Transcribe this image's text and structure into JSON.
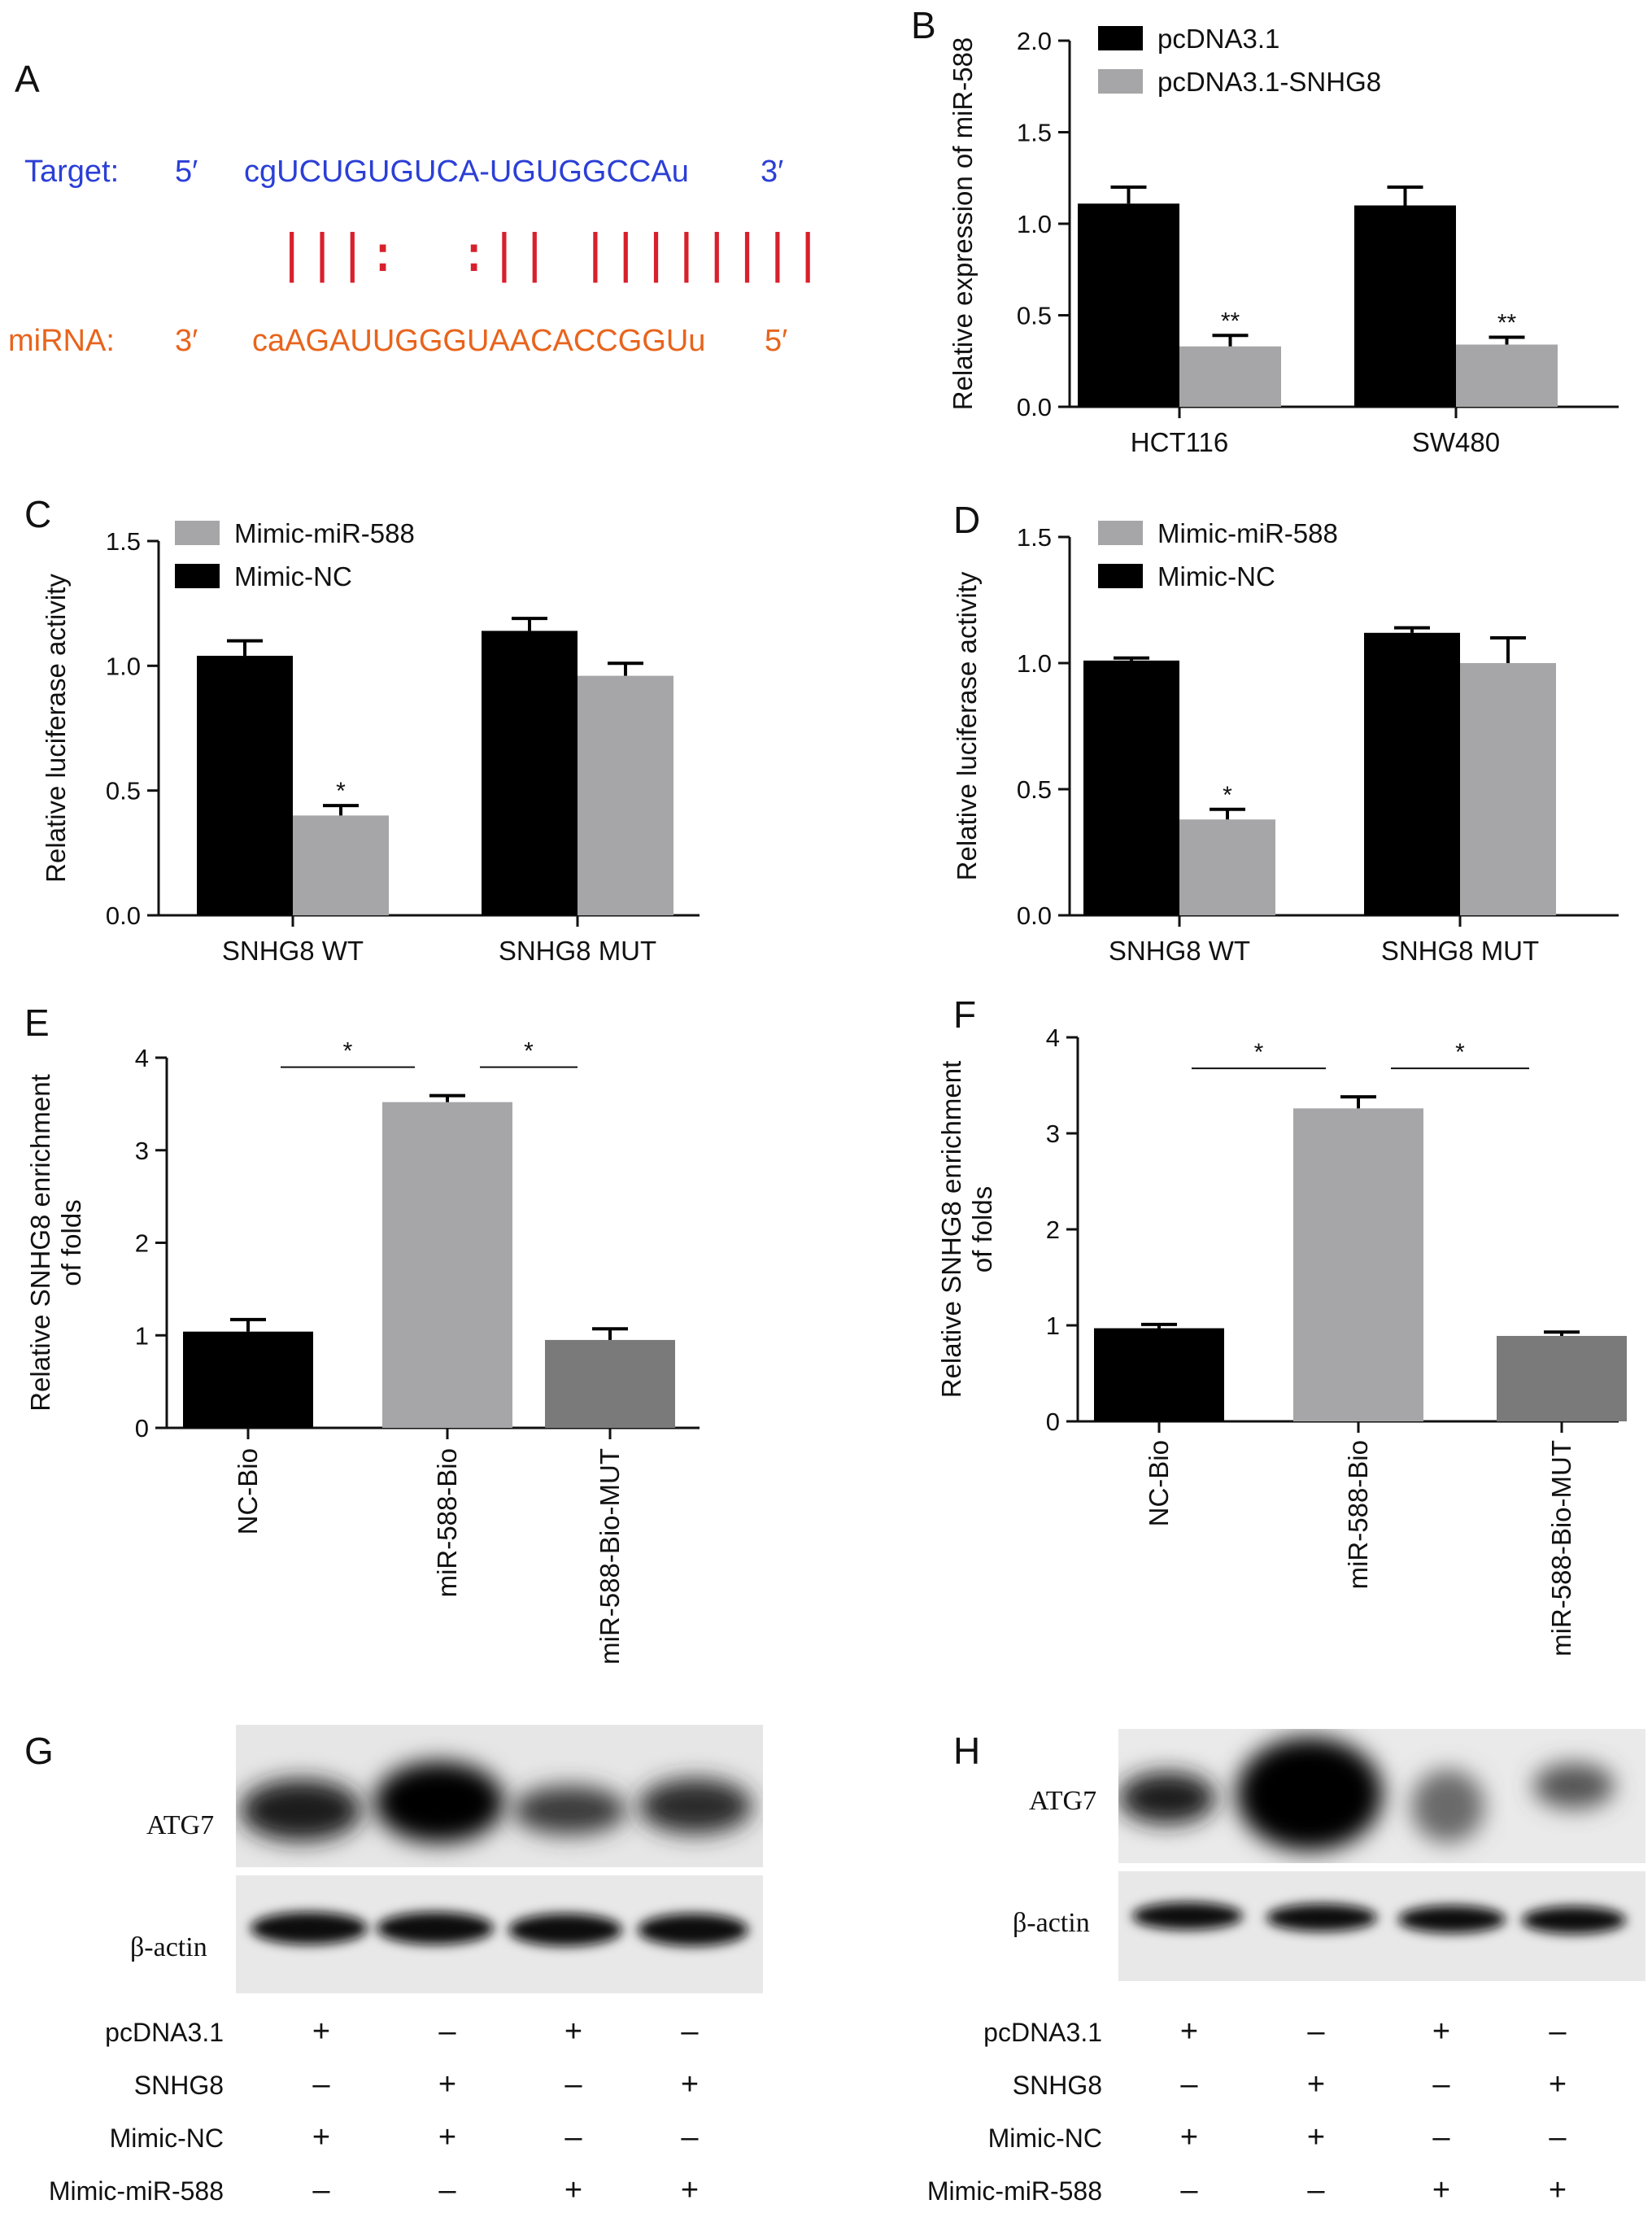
{
  "panels": {
    "A": {
      "letter": "A",
      "target_label": "Target:",
      "target_five": "5′",
      "target_seq": "cgUCUGUGUCA-UGUGGCCAu",
      "target_three": "3′",
      "pairing": "|||:  :|| ||||||||",
      "mirna_label": "miRNA:",
      "mirna_three": "3′",
      "mirna_seq": "caAGAUUGGGUAACACCGGUu",
      "mirna_five": "5′"
    },
    "B": {
      "letter": "B"
    },
    "C": {
      "letter": "C"
    },
    "D": {
      "letter": "D"
    },
    "E": {
      "letter": "E"
    },
    "F": {
      "letter": "F"
    },
    "G": {
      "letter": "G",
      "protein": "ATG7",
      "control": "β-actin"
    },
    "H": {
      "letter": "H",
      "protein": "ATG7",
      "control": "β-actin"
    }
  },
  "blot_table": {
    "rows": [
      {
        "label": "pcDNA3.1",
        "signs": [
          "+",
          "–",
          "+",
          "–"
        ]
      },
      {
        "label": "SNHG8",
        "signs": [
          "–",
          "+",
          "–",
          "+"
        ]
      },
      {
        "label": "Mimic-NC",
        "signs": [
          "+",
          "+",
          "–",
          "–"
        ]
      },
      {
        "label": "Mimic-miR-588",
        "signs": [
          "–",
          "–",
          "+",
          "+"
        ]
      }
    ]
  },
  "colors": {
    "black_bar": "#000000",
    "light_gray_bar": "#a6a6a8",
    "dark_gray_bar": "#7a7a7a"
  },
  "chart_data": [
    {
      "id": "B",
      "type": "bar",
      "categories": [
        "HCT116",
        "SW480"
      ],
      "ylabel": "Relative expression of miR-588",
      "ylim": [
        0,
        2.0
      ],
      "yticks": [
        "0.0",
        "0.5",
        "1.0",
        "1.5",
        "2.0"
      ],
      "legend": "top-left",
      "series": [
        {
          "name": "pcDNA3.1",
          "values": [
            1.11,
            1.1
          ],
          "errors": [
            0.09,
            0.1
          ],
          "sig": [
            "",
            ""
          ]
        },
        {
          "name": "pcDNA3.1-SNHG8",
          "values": [
            0.33,
            0.34
          ],
          "errors": [
            0.06,
            0.04
          ],
          "sig": [
            "**",
            "**"
          ]
        }
      ]
    },
    {
      "id": "C",
      "type": "bar",
      "categories": [
        "SNHG8 WT",
        "SNHG8 MUT"
      ],
      "ylabel": "Relative luciferase activity",
      "ylim": [
        0,
        1.5
      ],
      "yticks": [
        "0.0",
        "0.5",
        "1.0",
        "1.5"
      ],
      "legend": "top-left",
      "legend_order": [
        "Mimic-miR-588",
        "Mimic-NC"
      ],
      "series": [
        {
          "name": "Mimic-NC",
          "values": [
            1.04,
            1.14
          ],
          "errors": [
            0.06,
            0.05
          ],
          "sig": [
            "",
            ""
          ]
        },
        {
          "name": "Mimic-miR-588",
          "values": [
            0.4,
            0.96
          ],
          "errors": [
            0.04,
            0.05
          ],
          "sig": [
            "*",
            ""
          ]
        }
      ]
    },
    {
      "id": "D",
      "type": "bar",
      "categories": [
        "SNHG8 WT",
        "SNHG8 MUT"
      ],
      "ylabel": "Relative luciferase activity",
      "ylim": [
        0,
        1.5
      ],
      "yticks": [
        "0.0",
        "0.5",
        "1.0",
        "1.5"
      ],
      "legend": "top-left",
      "legend_order": [
        "Mimic-miR-588",
        "Mimic-NC"
      ],
      "series": [
        {
          "name": "Mimic-NC",
          "values": [
            1.01,
            1.12
          ],
          "errors": [
            0.01,
            0.02
          ],
          "sig": [
            "",
            ""
          ]
        },
        {
          "name": "Mimic-miR-588",
          "values": [
            0.38,
            1.0
          ],
          "errors": [
            0.04,
            0.1
          ],
          "sig": [
            "*",
            ""
          ]
        }
      ]
    },
    {
      "id": "E",
      "type": "bar",
      "categories": [
        "NC-Bio",
        "miR-588-Bio",
        "miR-588-Bio-MUT"
      ],
      "ylabel": [
        "Relative SNHG8 enrichment",
        "of folds"
      ],
      "ylim": [
        0,
        4
      ],
      "yticks": [
        "0",
        "1",
        "2",
        "3",
        "4"
      ],
      "values": [
        1.04,
        3.52,
        0.95
      ],
      "errors": [
        0.13,
        0.07,
        0.12
      ],
      "bar_colors": [
        "#000000",
        "#a6a6a8",
        "#7a7a7a"
      ],
      "brackets": [
        {
          "from": 0,
          "to": 1,
          "label": "*"
        },
        {
          "from": 1,
          "to": 2,
          "label": "*"
        }
      ]
    },
    {
      "id": "F",
      "type": "bar",
      "categories": [
        "NC-Bio",
        "miR-588-Bio",
        "miR-588-Bio-MUT"
      ],
      "ylabel": [
        "Relative SNHG8 enrichment",
        "of folds"
      ],
      "ylim": [
        0,
        4
      ],
      "yticks": [
        "0",
        "1",
        "2",
        "3",
        "4"
      ],
      "values": [
        0.97,
        3.26,
        0.89
      ],
      "errors": [
        0.04,
        0.12,
        0.04
      ],
      "bar_colors": [
        "#000000",
        "#a6a6a8",
        "#7a7a7a"
      ],
      "brackets": [
        {
          "from": 0,
          "to": 1,
          "label": "*"
        },
        {
          "from": 1,
          "to": 2,
          "label": "*"
        }
      ]
    }
  ]
}
